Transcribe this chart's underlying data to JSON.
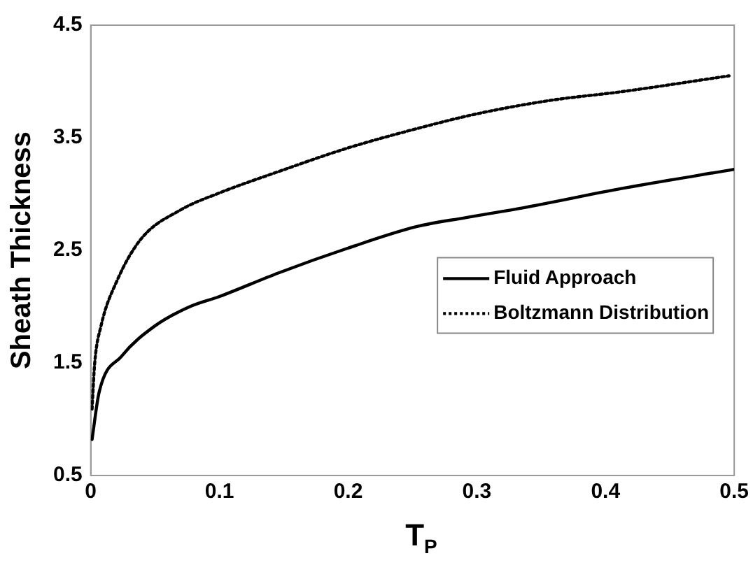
{
  "chart_data": {
    "type": "line",
    "xlabel": "T$_{P}$",
    "ylabel": "Sheath Thickness",
    "xlim": [
      0,
      0.5
    ],
    "xticks": [
      0,
      0.1,
      0.2,
      0.3,
      0.4,
      0.5
    ],
    "ylim": [
      0.5,
      4.5
    ],
    "yticks": [
      0.5,
      1.5,
      2.5,
      3.5,
      4.5
    ],
    "grid": false,
    "legend": "right",
    "marker": "none",
    "series": [
      {
        "name": "Fluid Approach",
        "color": "#000000",
        "line_style": "solid",
        "x": [
          0.001,
          0.0065,
          0.024,
          0.05,
          0.077,
          0.1,
          0.146,
          0.2,
          0.253,
          0.291,
          0.337,
          0.413,
          0.5
        ],
        "values": [
          0.82,
          1.24,
          1.56,
          1.83,
          2.0,
          2.09,
          2.3,
          2.52,
          2.71,
          2.79,
          2.88,
          3.05,
          3.22
        ]
      },
      {
        "name": "Boltzmann Distribution",
        "color": "#000000",
        "line_style": "dotted",
        "x": [
          0.001,
          0.003,
          0.008,
          0.02,
          0.039,
          0.07,
          0.1,
          0.146,
          0.2,
          0.253,
          0.299,
          0.356,
          0.413,
          0.496
        ],
        "values": [
          1.09,
          1.49,
          1.83,
          2.22,
          2.6,
          2.86,
          3.01,
          3.2,
          3.41,
          3.58,
          3.71,
          3.83,
          3.91,
          4.05
        ]
      }
    ]
  }
}
